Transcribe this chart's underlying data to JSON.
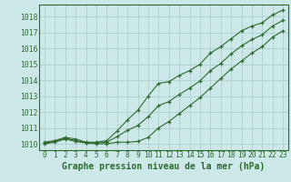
{
  "x": [
    0,
    1,
    2,
    3,
    4,
    5,
    6,
    7,
    8,
    9,
    10,
    11,
    12,
    13,
    14,
    15,
    16,
    17,
    18,
    19,
    20,
    21,
    22,
    23
  ],
  "line_max": [
    1010.1,
    1010.2,
    1010.4,
    1010.3,
    1010.1,
    1010.1,
    1010.2,
    1010.8,
    1011.5,
    1012.1,
    1013.0,
    1013.8,
    1013.9,
    1014.3,
    1014.6,
    1015.0,
    1015.7,
    1016.1,
    1016.6,
    1017.1,
    1017.4,
    1017.6,
    1018.1,
    1018.4
  ],
  "line_min": [
    1010.0,
    1010.1,
    1010.3,
    1010.15,
    1010.05,
    1010.0,
    1010.0,
    1010.1,
    1010.1,
    1010.15,
    1010.4,
    1011.0,
    1011.4,
    1011.9,
    1012.4,
    1012.9,
    1013.5,
    1014.1,
    1014.7,
    1015.2,
    1015.7,
    1016.1,
    1016.7,
    1017.1
  ],
  "line_mid": [
    1010.05,
    1010.15,
    1010.35,
    1010.2,
    1010.08,
    1010.05,
    1010.1,
    1010.45,
    1010.85,
    1011.15,
    1011.7,
    1012.4,
    1012.65,
    1013.1,
    1013.5,
    1013.95,
    1014.6,
    1015.05,
    1015.65,
    1016.15,
    1016.55,
    1016.85,
    1017.4,
    1017.75
  ],
  "line_color": "#2d6a2d",
  "bg_color": "#cce8e8",
  "grid_color": "#aacccc",
  "bottom_bar_color": "#3a7a3a",
  "ylabel_values": [
    1010,
    1011,
    1012,
    1013,
    1014,
    1015,
    1016,
    1017,
    1018
  ],
  "xlabel": "Graphe pression niveau de la mer (hPa)",
  "ylim_min": 1009.6,
  "ylim_max": 1018.75,
  "xlim_min": -0.5,
  "xlim_max": 23.5,
  "tick_fontsize": 5.8,
  "label_fontsize": 7.0
}
